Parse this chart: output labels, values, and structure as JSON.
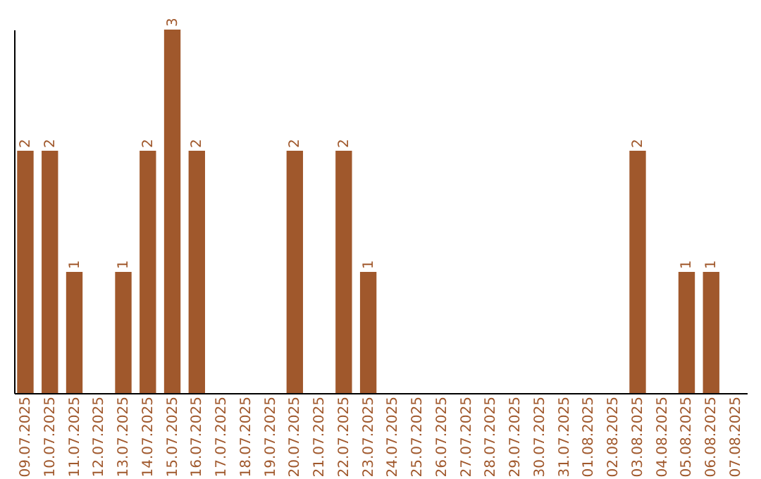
{
  "chart_data": {
    "type": "bar",
    "categories": [
      "09.07.2025",
      "10.07.2025",
      "11.07.2025",
      "12.07.2025",
      "13.07.2025",
      "14.07.2025",
      "15.07.2025",
      "16.07.2025",
      "17.07.2025",
      "18.07.2025",
      "19.07.2025",
      "20.07.2025",
      "21.07.2025",
      "22.07.2025",
      "23.07.2025",
      "24.07.2025",
      "25.07.2025",
      "26.07.2025",
      "27.07.2025",
      "28.07.2025",
      "29.07.2025",
      "30.07.2025",
      "31.07.2025",
      "01.08.2025",
      "02.08.2025",
      "03.08.2025",
      "04.08.2025",
      "05.08.2025",
      "06.08.2025",
      "07.08.2025"
    ],
    "values": [
      2,
      2,
      1,
      0,
      1,
      2,
      3,
      2,
      0,
      0,
      0,
      2,
      0,
      2,
      1,
      0,
      0,
      0,
      0,
      0,
      0,
      0,
      0,
      0,
      0,
      2,
      0,
      1,
      1,
      0
    ],
    "value_labels": [
      "2",
      "2",
      "1",
      null,
      "1",
      "2",
      "3",
      "2",
      null,
      null,
      null,
      "2",
      null,
      "2",
      "1",
      null,
      null,
      null,
      null,
      null,
      null,
      null,
      null,
      null,
      null,
      "2",
      null,
      "1",
      "1",
      null
    ],
    "color": "#a0582c"
  }
}
